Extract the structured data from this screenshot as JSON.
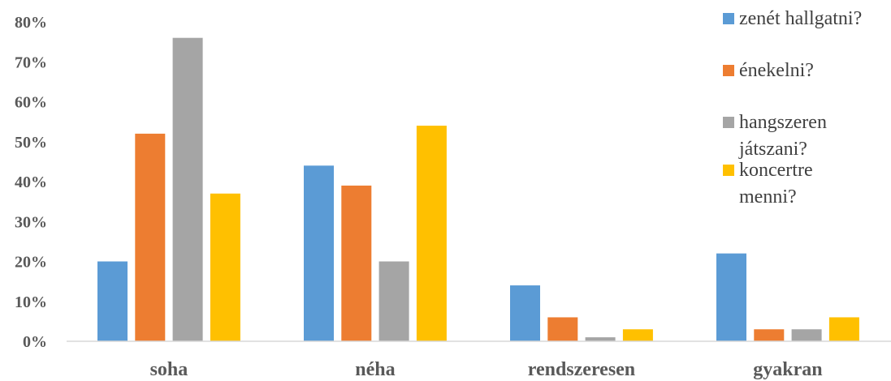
{
  "chart_data": {
    "type": "bar",
    "categories": [
      "soha",
      "néha",
      "rendszeresen",
      "gyakran"
    ],
    "series": [
      {
        "name": "zenét hallgatni?",
        "values": [
          20,
          44,
          14,
          22
        ],
        "color": "#5B9BD5"
      },
      {
        "name": "énekelni?",
        "values": [
          52,
          39,
          6,
          3
        ],
        "color": "#ED7D31"
      },
      {
        "name": "hangszeren játszani?",
        "values": [
          76,
          20,
          1,
          3
        ],
        "color": "#A5A5A5"
      },
      {
        "name": "koncertre menni?",
        "values": [
          37,
          54,
          3,
          6
        ],
        "color": "#FFC000"
      }
    ],
    "y_ticks": [
      "0%",
      "10%",
      "20%",
      "30%",
      "40%",
      "50%",
      "60%",
      "70%",
      "80%"
    ],
    "ylim": [
      0,
      80
    ],
    "legend_position": "top-right",
    "grid": false
  }
}
